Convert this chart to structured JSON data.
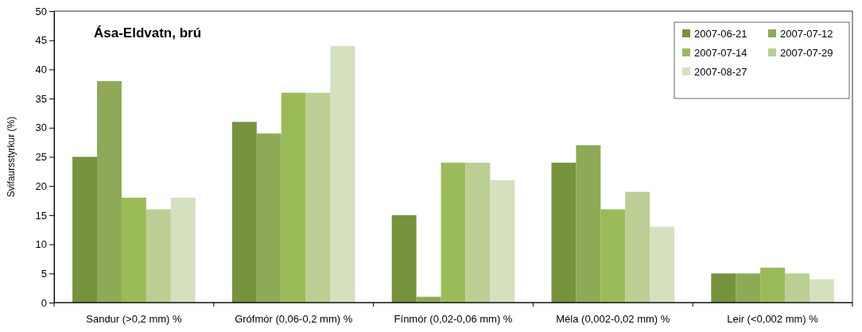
{
  "chart_data": {
    "type": "bar",
    "title": "Ása-Eldvatn, brú",
    "ylabel": "Svifaursstyrkur (%)",
    "categories": [
      "Sandur (>0,2 mm) %",
      "Grófmór (0,06-0,2 mm) %",
      "Fínmór (0,02-0,06 mm) %",
      "Méla (0,002-0,02 mm) %",
      "Leir (<0,002 mm) %"
    ],
    "series": [
      {
        "name": "2007-06-21",
        "color": "#76923c",
        "values": [
          25,
          31,
          15,
          24,
          5
        ]
      },
      {
        "name": "2007-07-12",
        "color": "#8eaa56",
        "values": [
          38,
          29,
          1,
          27,
          5
        ]
      },
      {
        "name": "2007-07-14",
        "color": "#9bbb59",
        "values": [
          18,
          36,
          24,
          16,
          6
        ]
      },
      {
        "name": "2007-07-29",
        "color": "#bbcf95",
        "values": [
          16,
          36,
          24,
          19,
          5
        ]
      },
      {
        "name": "2007-08-27",
        "color": "#d4e0be",
        "values": [
          18,
          44,
          21,
          13,
          4
        ]
      }
    ],
    "ylim": [
      0,
      50
    ],
    "yticks": [
      0,
      5,
      10,
      15,
      20,
      25,
      30,
      35,
      40,
      45,
      50
    ],
    "grid": false,
    "legend": "top right"
  }
}
